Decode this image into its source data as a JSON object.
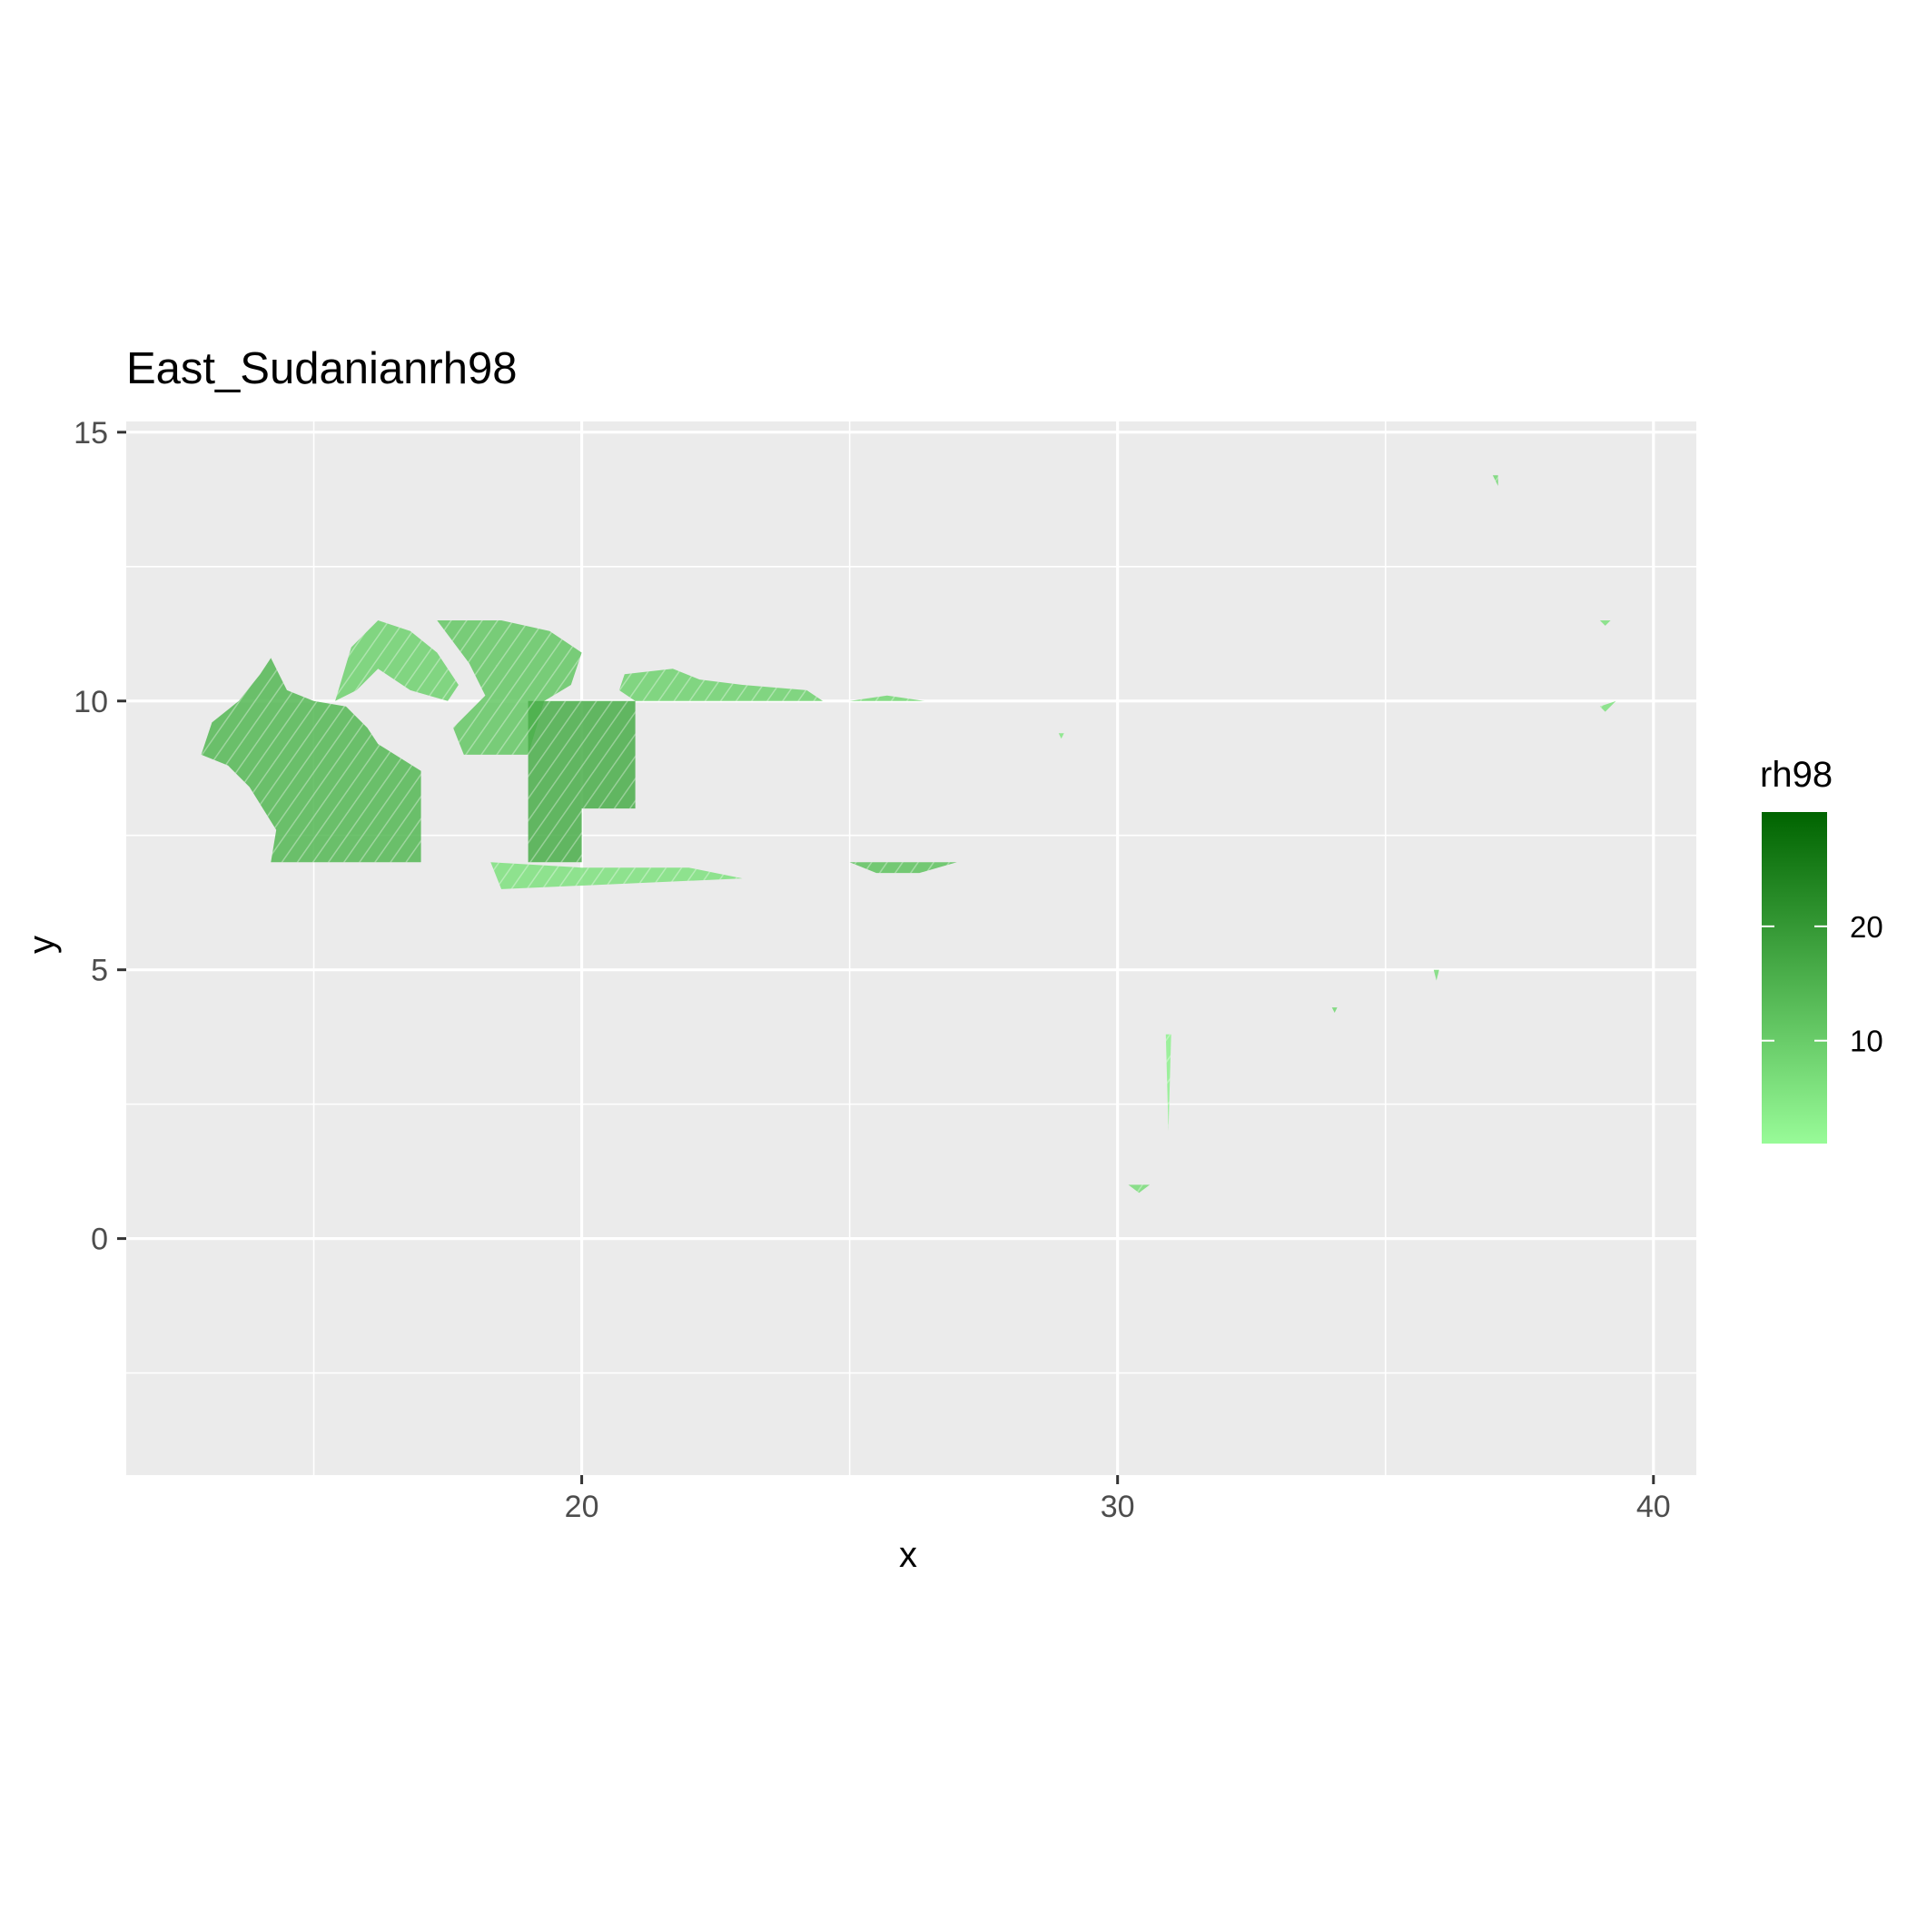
{
  "chart_data": {
    "type": "heatmap",
    "title": "East_Sudanianrh98",
    "xlabel": "x",
    "ylabel": "y",
    "xlim": [
      11.5,
      40.8
    ],
    "ylim": [
      -4.4,
      15.2
    ],
    "x_ticks": [
      20,
      30,
      40
    ],
    "x_tick_labels": [
      "20",
      "30",
      "40"
    ],
    "y_ticks": [
      0,
      5,
      10,
      15
    ],
    "y_tick_labels": [
      "0",
      "5",
      "10",
      "15"
    ],
    "x_minor_grid": [
      15,
      25,
      35
    ],
    "y_minor_grid": [
      -2.5,
      2.5,
      7.5,
      12.5
    ],
    "grid": true,
    "legend": {
      "title": "rh98",
      "position": "right",
      "range": [
        1,
        30
      ],
      "ticks": [
        10,
        20
      ],
      "tick_labels": [
        "10",
        "20"
      ],
      "color_low": "#98FB98",
      "color_high": "#006400"
    },
    "colors": {
      "panel_bg": "#EBEBEB",
      "grid_major": "#FFFFFF",
      "axis_text": "#4D4D4D",
      "title_text": "#000000"
    },
    "regions": [
      {
        "polygon": [
          [
            12.9,
            9.0
          ],
          [
            13.1,
            9.6
          ],
          [
            13.6,
            10.0
          ],
          [
            14.0,
            10.5
          ],
          [
            14.2,
            10.8
          ],
          [
            14.5,
            10.2
          ],
          [
            15.0,
            10.0
          ],
          [
            15.6,
            9.9
          ],
          [
            16.0,
            9.5
          ],
          [
            16.2,
            9.2
          ],
          [
            17.0,
            8.7
          ],
          [
            17.0,
            7.0
          ],
          [
            14.2,
            7.0
          ],
          [
            14.3,
            7.6
          ],
          [
            13.8,
            8.4
          ],
          [
            13.4,
            8.8
          ]
        ],
        "value": 14
      },
      {
        "polygon": [
          [
            15.4,
            10.0
          ],
          [
            15.7,
            11.0
          ],
          [
            16.2,
            11.5
          ],
          [
            16.8,
            11.3
          ],
          [
            17.3,
            10.9
          ],
          [
            17.7,
            10.3
          ],
          [
            17.5,
            10.0
          ],
          [
            16.8,
            10.2
          ],
          [
            16.2,
            10.6
          ],
          [
            15.8,
            10.2
          ]
        ],
        "value": 9
      },
      {
        "polygon": [
          [
            17.3,
            11.5
          ],
          [
            18.5,
            11.5
          ],
          [
            19.4,
            11.3
          ],
          [
            20.0,
            10.9
          ],
          [
            19.8,
            10.3
          ],
          [
            19.3,
            10.0
          ],
          [
            19.0,
            9.0
          ],
          [
            17.8,
            9.0
          ],
          [
            17.6,
            9.5
          ],
          [
            18.2,
            10.1
          ],
          [
            17.9,
            10.7
          ]
        ],
        "value": 11
      },
      {
        "polygon": [
          [
            19.0,
            10.0
          ],
          [
            21.0,
            10.0
          ],
          [
            21.0,
            8.0
          ],
          [
            20.0,
            8.0
          ],
          [
            20.0,
            7.0
          ],
          [
            19.0,
            7.0
          ]
        ],
        "value": 16
      },
      {
        "polygon": [
          [
            21.0,
            10.0
          ],
          [
            21.8,
            10.0
          ],
          [
            24.5,
            10.0
          ],
          [
            24.2,
            10.2
          ],
          [
            23.0,
            10.3
          ],
          [
            22.2,
            10.4
          ],
          [
            21.7,
            10.6
          ],
          [
            20.8,
            10.5
          ],
          [
            20.7,
            10.2
          ]
        ],
        "value": 9
      },
      {
        "polygon": [
          [
            25.0,
            10.0
          ],
          [
            25.7,
            10.1
          ],
          [
            26.4,
            10.0
          ]
        ],
        "value": 8
      },
      {
        "polygon": [
          [
            25.0,
            7.0
          ],
          [
            27.0,
            7.0
          ],
          [
            26.3,
            6.8
          ],
          [
            25.5,
            6.8
          ]
        ],
        "value": 12
      },
      {
        "polygon": [
          [
            18.3,
            7.0
          ],
          [
            20.0,
            6.9
          ],
          [
            22.0,
            6.9
          ],
          [
            23.0,
            6.7
          ],
          [
            18.5,
            6.5
          ]
        ],
        "value": 6
      },
      {
        "polygon": [
          [
            30.2,
            1.0
          ],
          [
            30.6,
            1.0
          ],
          [
            30.4,
            0.85
          ]
        ],
        "value": 7
      },
      {
        "polygon": [
          [
            37.0,
            14.2
          ],
          [
            37.1,
            14.2
          ],
          [
            37.1,
            14.0
          ]
        ],
        "value": 8
      },
      {
        "polygon": [
          [
            39.0,
            11.5
          ],
          [
            39.2,
            11.5
          ],
          [
            39.1,
            11.4
          ]
        ],
        "value": 6
      },
      {
        "polygon": [
          [
            39.0,
            9.9
          ],
          [
            39.3,
            10.0
          ],
          [
            39.1,
            9.8
          ]
        ],
        "value": 6
      },
      {
        "polygon": [
          [
            35.9,
            5.0
          ],
          [
            36.0,
            5.0
          ],
          [
            35.95,
            4.8
          ]
        ],
        "value": 7
      },
      {
        "polygon": [
          [
            34.0,
            4.3
          ],
          [
            34.1,
            4.3
          ],
          [
            34.05,
            4.2
          ]
        ],
        "value": 8
      },
      {
        "polygon": [
          [
            30.9,
            3.8
          ],
          [
            31.0,
            3.8
          ],
          [
            30.95,
            2.0
          ]
        ],
        "value": 3
      },
      {
        "polygon": [
          [
            28.9,
            9.4
          ],
          [
            29.0,
            9.4
          ],
          [
            28.95,
            9.3
          ]
        ],
        "value": 5
      }
    ]
  }
}
